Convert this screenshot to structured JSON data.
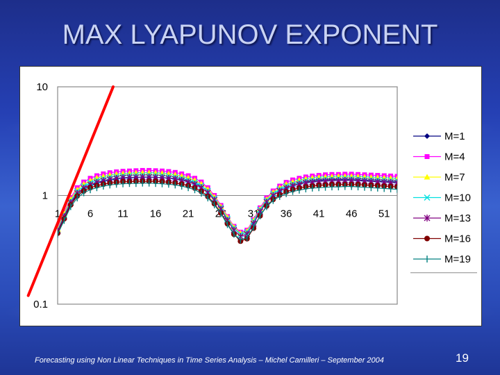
{
  "slide": {
    "title": "MAX LYAPUNOV EXPONENT",
    "footer": "Forecasting using Non Linear Techniques in Time Series Analysis – Michel Camilleri – September 2004",
    "page_number": "19"
  },
  "chart_data": {
    "type": "line",
    "title": "",
    "xlabel": "",
    "ylabel": "",
    "y_scale": "log",
    "ylim": [
      0.1,
      10
    ],
    "y_ticks": [
      {
        "value": 10,
        "label": "10"
      },
      {
        "value": 1,
        "label": "1"
      },
      {
        "value": 0.1,
        "label": "0.1"
      }
    ],
    "x_range": [
      1,
      53
    ],
    "x_ticks": [
      {
        "value": 1,
        "label": "1"
      },
      {
        "value": 6,
        "label": "6"
      },
      {
        "value": 11,
        "label": "11"
      },
      {
        "value": 16,
        "label": "16"
      },
      {
        "value": 21,
        "label": "21"
      },
      {
        "value": 26,
        "label": "26"
      },
      {
        "value": 31,
        "label": "31"
      },
      {
        "value": 36,
        "label": "36"
      },
      {
        "value": 41,
        "label": "41"
      },
      {
        "value": 46,
        "label": "46"
      },
      {
        "value": 51,
        "label": "51"
      }
    ],
    "grid": false,
    "legend_position": "right",
    "x": [
      1,
      2,
      3,
      4,
      5,
      6,
      7,
      8,
      9,
      10,
      11,
      12,
      13,
      14,
      15,
      16,
      17,
      18,
      19,
      20,
      21,
      22,
      23,
      24,
      25,
      26,
      27,
      28,
      29,
      30,
      31,
      32,
      33,
      34,
      35,
      36,
      37,
      38,
      39,
      40,
      41,
      42,
      43,
      44,
      45,
      46,
      47,
      48,
      49,
      50,
      51,
      52,
      53
    ],
    "series": [
      {
        "name": "M=1",
        "color": "#000080",
        "marker": "diamond",
        "values": [
          0.46,
          0.63,
          0.84,
          1.02,
          1.14,
          1.23,
          1.3,
          1.35,
          1.39,
          1.42,
          1.44,
          1.45,
          1.46,
          1.47,
          1.47,
          1.47,
          1.46,
          1.45,
          1.43,
          1.4,
          1.36,
          1.3,
          1.22,
          1.1,
          0.95,
          0.78,
          0.62,
          0.5,
          0.44,
          0.46,
          0.57,
          0.72,
          0.88,
          1.0,
          1.1,
          1.18,
          1.24,
          1.29,
          1.33,
          1.36,
          1.38,
          1.39,
          1.4,
          1.4,
          1.4,
          1.4,
          1.39,
          1.38,
          1.37,
          1.36,
          1.35,
          1.34,
          1.33
        ]
      },
      {
        "name": "M=4",
        "color": "#ff00ff",
        "marker": "square",
        "values": [
          0.5,
          0.7,
          0.95,
          1.18,
          1.33,
          1.44,
          1.52,
          1.58,
          1.62,
          1.65,
          1.67,
          1.68,
          1.69,
          1.7,
          1.7,
          1.69,
          1.68,
          1.66,
          1.63,
          1.58,
          1.52,
          1.44,
          1.33,
          1.18,
          1.0,
          0.81,
          0.64,
          0.52,
          0.46,
          0.48,
          0.6,
          0.77,
          0.95,
          1.1,
          1.22,
          1.32,
          1.39,
          1.44,
          1.48,
          1.51,
          1.53,
          1.55,
          1.56,
          1.56,
          1.57,
          1.57,
          1.56,
          1.55,
          1.54,
          1.53,
          1.52,
          1.51,
          1.5
        ]
      },
      {
        "name": "M=7",
        "color": "#ffff00",
        "marker": "triangle",
        "values": [
          0.49,
          0.68,
          0.92,
          1.13,
          1.27,
          1.37,
          1.45,
          1.5,
          1.54,
          1.57,
          1.59,
          1.6,
          1.61,
          1.62,
          1.62,
          1.61,
          1.6,
          1.58,
          1.55,
          1.51,
          1.45,
          1.38,
          1.28,
          1.14,
          0.97,
          0.79,
          0.63,
          0.51,
          0.45,
          0.47,
          0.59,
          0.75,
          0.92,
          1.07,
          1.18,
          1.27,
          1.33,
          1.38,
          1.42,
          1.45,
          1.47,
          1.48,
          1.49,
          1.5,
          1.5,
          1.5,
          1.49,
          1.48,
          1.47,
          1.46,
          1.45,
          1.44,
          1.43
        ]
      },
      {
        "name": "M=10",
        "color": "#00e0e0",
        "marker": "x",
        "values": [
          0.48,
          0.66,
          0.89,
          1.09,
          1.22,
          1.31,
          1.38,
          1.43,
          1.47,
          1.5,
          1.52,
          1.53,
          1.54,
          1.54,
          1.54,
          1.54,
          1.53,
          1.51,
          1.48,
          1.44,
          1.39,
          1.32,
          1.23,
          1.1,
          0.94,
          0.77,
          0.61,
          0.5,
          0.44,
          0.46,
          0.58,
          0.74,
          0.9,
          1.04,
          1.14,
          1.22,
          1.28,
          1.33,
          1.37,
          1.39,
          1.41,
          1.42,
          1.43,
          1.44,
          1.44,
          1.44,
          1.43,
          1.42,
          1.41,
          1.4,
          1.39,
          1.38,
          1.37
        ]
      },
      {
        "name": "M=13",
        "color": "#800080",
        "marker": "star",
        "values": [
          0.47,
          0.64,
          0.86,
          1.05,
          1.17,
          1.26,
          1.32,
          1.37,
          1.41,
          1.44,
          1.46,
          1.47,
          1.47,
          1.48,
          1.48,
          1.47,
          1.46,
          1.44,
          1.42,
          1.38,
          1.33,
          1.27,
          1.18,
          1.06,
          0.91,
          0.75,
          0.59,
          0.48,
          0.42,
          0.44,
          0.55,
          0.71,
          0.87,
          1.0,
          1.1,
          1.17,
          1.23,
          1.27,
          1.31,
          1.33,
          1.35,
          1.36,
          1.37,
          1.37,
          1.38,
          1.38,
          1.37,
          1.36,
          1.35,
          1.34,
          1.33,
          1.32,
          1.31
        ]
      },
      {
        "name": "M=16",
        "color": "#800000",
        "marker": "circle",
        "values": [
          0.45,
          0.61,
          0.82,
          0.99,
          1.1,
          1.18,
          1.23,
          1.27,
          1.3,
          1.32,
          1.34,
          1.34,
          1.35,
          1.35,
          1.35,
          1.35,
          1.34,
          1.32,
          1.3,
          1.27,
          1.23,
          1.17,
          1.09,
          0.98,
          0.84,
          0.69,
          0.55,
          0.44,
          0.38,
          0.4,
          0.5,
          0.65,
          0.8,
          0.92,
          1.01,
          1.08,
          1.13,
          1.17,
          1.2,
          1.22,
          1.24,
          1.25,
          1.26,
          1.26,
          1.26,
          1.26,
          1.26,
          1.25,
          1.24,
          1.23,
          1.22,
          1.21,
          1.2
        ]
      },
      {
        "name": "M=19",
        "color": "#008080",
        "marker": "plus",
        "values": [
          0.44,
          0.59,
          0.79,
          0.95,
          1.06,
          1.13,
          1.18,
          1.22,
          1.25,
          1.27,
          1.28,
          1.29,
          1.29,
          1.3,
          1.3,
          1.29,
          1.28,
          1.27,
          1.25,
          1.22,
          1.18,
          1.13,
          1.05,
          0.95,
          0.82,
          0.68,
          0.54,
          0.44,
          0.39,
          0.41,
          0.51,
          0.65,
          0.79,
          0.9,
          0.98,
          1.04,
          1.09,
          1.12,
          1.15,
          1.17,
          1.18,
          1.19,
          1.2,
          1.2,
          1.21,
          1.21,
          1.2,
          1.19,
          1.18,
          1.17,
          1.16,
          1.15,
          1.14
        ]
      }
    ],
    "overlay_line": {
      "color": "#ff0000",
      "from": {
        "x": -3.5,
        "y": 0.12
      },
      "to": {
        "x": 9.5,
        "y": 10
      }
    }
  }
}
